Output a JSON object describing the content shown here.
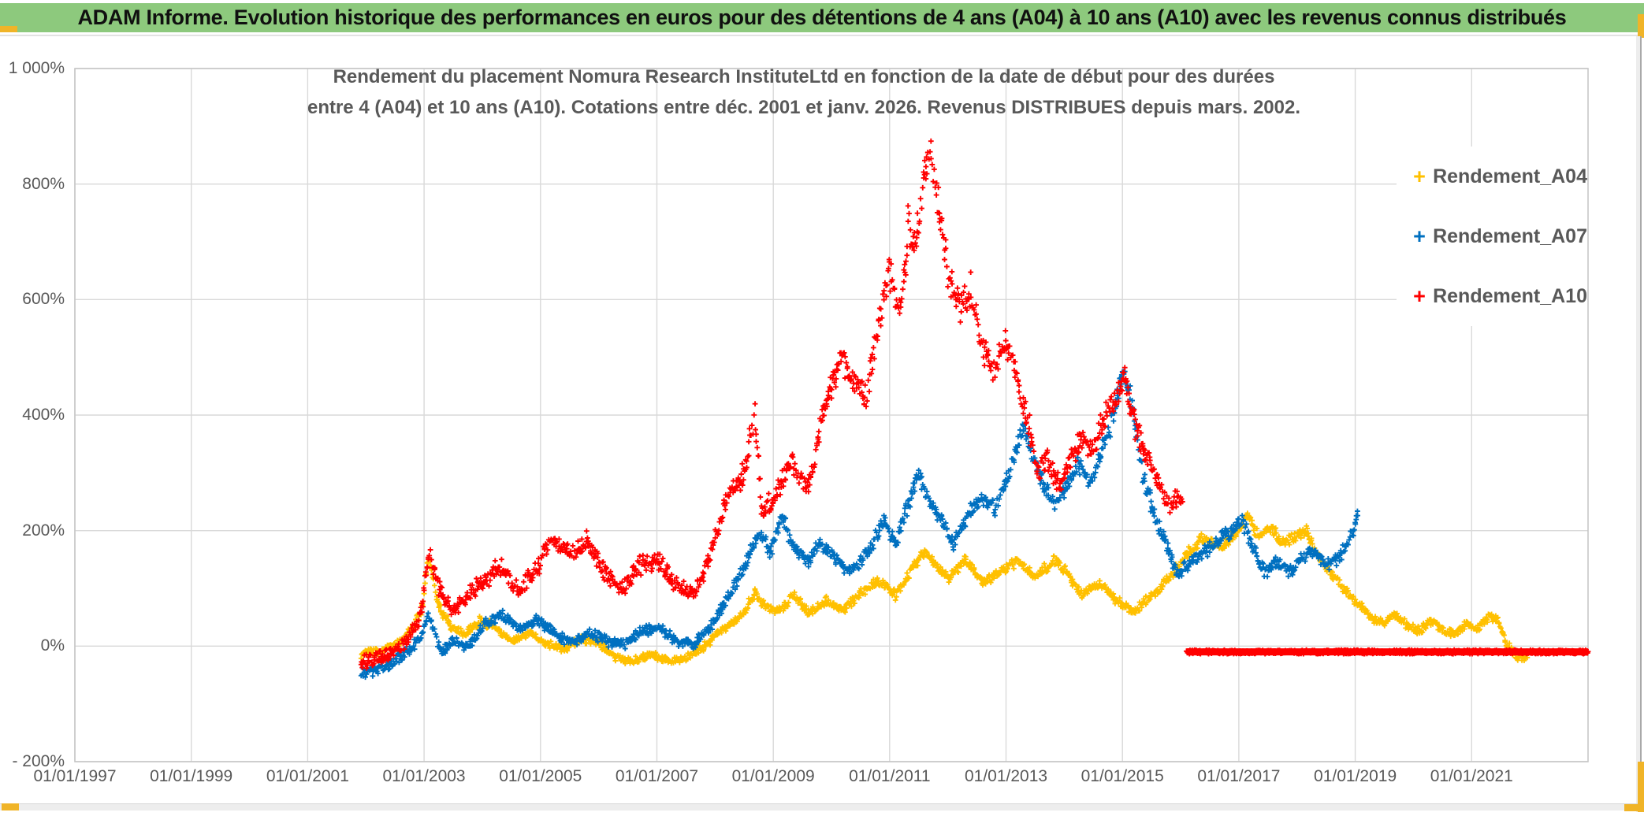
{
  "banner": {
    "text": "ADAM Informe. Evolution historique des performances en euros pour des détentions de 4 ans (A04) à 10 ans (A10) avec les revenus connus distribués",
    "bg_color": "#8dc97d",
    "accent_color": "#f0b428"
  },
  "chart_data": {
    "type": "scatter",
    "title_line1": "Rendement du placement Nomura Research InstituteLtd en fonction de la date de début pour des durées",
    "title_line2": "entre 4 (A04) et 10 ans (A10). Cotations entre déc. 2001 et janv. 2026. Revenus DISTRIBUES depuis mars. 2002.",
    "grid": true,
    "legend_position": "right-inside",
    "grid_color": "#d9d9d9",
    "border_color": "#c6c6c6",
    "x_axis": {
      "labels": [
        "01/01/1997",
        "01/01/1999",
        "01/01/2001",
        "01/01/2003",
        "01/01/2005",
        "01/01/2007",
        "01/01/2009",
        "01/01/2011",
        "01/01/2013",
        "01/01/2015",
        "01/01/2017",
        "01/01/2019",
        "01/01/2021"
      ],
      "start_year": 1997,
      "end_year": 2023,
      "tick_step_years": 2
    },
    "y_axis": {
      "labels": [
        "1 000%",
        "800%",
        "600%",
        "400%",
        "200%",
        "0%",
        "- 200%"
      ],
      "min": -200,
      "max": 1000,
      "grid_step": 200,
      "unit": "%"
    },
    "series": [
      {
        "name": "Rendement_A04",
        "color": "#FFC000",
        "marker": "plus",
        "jitter": 8,
        "anchors": [
          [
            2001.92,
            -15
          ],
          [
            2002.2,
            -8
          ],
          [
            2002.5,
            0
          ],
          [
            2002.75,
            25
          ],
          [
            2002.95,
            60
          ],
          [
            2003.08,
            155
          ],
          [
            2003.25,
            70
          ],
          [
            2003.45,
            35
          ],
          [
            2003.7,
            20
          ],
          [
            2003.95,
            45
          ],
          [
            2004.2,
            35
          ],
          [
            2004.5,
            8
          ],
          [
            2004.8,
            22
          ],
          [
            2005.1,
            4
          ],
          [
            2005.4,
            -6
          ],
          [
            2005.7,
            12
          ],
          [
            2006.0,
            6
          ],
          [
            2006.3,
            -20
          ],
          [
            2006.6,
            -26
          ],
          [
            2006.9,
            -14
          ],
          [
            2007.2,
            -26
          ],
          [
            2007.5,
            -20
          ],
          [
            2007.8,
            -2
          ],
          [
            2008.1,
            28
          ],
          [
            2008.4,
            48
          ],
          [
            2008.7,
            92
          ],
          [
            2008.9,
            65
          ],
          [
            2009.1,
            60
          ],
          [
            2009.35,
            88
          ],
          [
            2009.6,
            58
          ],
          [
            2009.9,
            78
          ],
          [
            2010.2,
            62
          ],
          [
            2010.5,
            92
          ],
          [
            2010.8,
            112
          ],
          [
            2011.1,
            88
          ],
          [
            2011.35,
            128
          ],
          [
            2011.6,
            165
          ],
          [
            2011.8,
            138
          ],
          [
            2012.0,
            118
          ],
          [
            2012.3,
            150
          ],
          [
            2012.6,
            108
          ],
          [
            2012.9,
            128
          ],
          [
            2013.2,
            148
          ],
          [
            2013.5,
            118
          ],
          [
            2013.8,
            148
          ],
          [
            2014.05,
            128
          ],
          [
            2014.3,
            88
          ],
          [
            2014.6,
            108
          ],
          [
            2014.9,
            78
          ],
          [
            2015.2,
            58
          ],
          [
            2015.5,
            88
          ],
          [
            2015.8,
            118
          ],
          [
            2016.1,
            158
          ],
          [
            2016.4,
            188
          ],
          [
            2016.7,
            168
          ],
          [
            2016.95,
            198
          ],
          [
            2017.15,
            228
          ],
          [
            2017.35,
            188
          ],
          [
            2017.55,
            208
          ],
          [
            2017.75,
            178
          ],
          [
            2017.95,
            188
          ],
          [
            2018.15,
            198
          ],
          [
            2018.4,
            148
          ],
          [
            2018.65,
            118
          ],
          [
            2018.9,
            88
          ],
          [
            2019.1,
            68
          ],
          [
            2019.3,
            48
          ],
          [
            2019.5,
            40
          ],
          [
            2019.7,
            55
          ],
          [
            2019.9,
            35
          ],
          [
            2020.1,
            25
          ],
          [
            2020.3,
            45
          ],
          [
            2020.5,
            28
          ],
          [
            2020.7,
            20
          ],
          [
            2020.9,
            38
          ],
          [
            2021.1,
            30
          ],
          [
            2021.3,
            52
          ],
          [
            2021.45,
            45
          ],
          [
            2021.6,
            5
          ],
          [
            2021.75,
            -18
          ],
          [
            2021.9,
            -22
          ],
          [
            2022.0,
            -8
          ]
        ]
      },
      {
        "name": "Rendement_A07",
        "color": "#0070C0",
        "marker": "plus",
        "jitter": 10,
        "anchors": [
          [
            2001.92,
            -48
          ],
          [
            2002.15,
            -42
          ],
          [
            2002.4,
            -32
          ],
          [
            2002.7,
            -12
          ],
          [
            2002.95,
            15
          ],
          [
            2003.08,
            58
          ],
          [
            2003.3,
            -12
          ],
          [
            2003.5,
            8
          ],
          [
            2003.75,
            -2
          ],
          [
            2004.05,
            38
          ],
          [
            2004.35,
            55
          ],
          [
            2004.65,
            28
          ],
          [
            2004.95,
            45
          ],
          [
            2005.25,
            22
          ],
          [
            2005.55,
            5
          ],
          [
            2005.85,
            25
          ],
          [
            2006.15,
            8
          ],
          [
            2006.45,
            4
          ],
          [
            2006.75,
            28
          ],
          [
            2007.05,
            30
          ],
          [
            2007.35,
            8
          ],
          [
            2007.65,
            4
          ],
          [
            2007.95,
            38
          ],
          [
            2008.25,
            88
          ],
          [
            2008.55,
            148
          ],
          [
            2008.75,
            195
          ],
          [
            2008.95,
            165
          ],
          [
            2009.15,
            225
          ],
          [
            2009.35,
            170
          ],
          [
            2009.6,
            148
          ],
          [
            2009.8,
            178
          ],
          [
            2010.05,
            158
          ],
          [
            2010.3,
            128
          ],
          [
            2010.6,
            158
          ],
          [
            2010.9,
            218
          ],
          [
            2011.1,
            178
          ],
          [
            2011.3,
            238
          ],
          [
            2011.5,
            300
          ],
          [
            2011.7,
            248
          ],
          [
            2011.9,
            215
          ],
          [
            2012.1,
            178
          ],
          [
            2012.35,
            228
          ],
          [
            2012.6,
            258
          ],
          [
            2012.8,
            238
          ],
          [
            2013.0,
            288
          ],
          [
            2013.2,
            345
          ],
          [
            2013.3,
            385
          ],
          [
            2013.45,
            325
          ],
          [
            2013.65,
            278
          ],
          [
            2013.85,
            238
          ],
          [
            2014.05,
            278
          ],
          [
            2014.25,
            318
          ],
          [
            2014.45,
            278
          ],
          [
            2014.65,
            338
          ],
          [
            2014.85,
            398
          ],
          [
            2015.0,
            478
          ],
          [
            2015.15,
            428
          ],
          [
            2015.35,
            298
          ],
          [
            2015.55,
            228
          ],
          [
            2015.75,
            178
          ],
          [
            2015.95,
            122
          ],
          [
            2016.15,
            142
          ],
          [
            2016.35,
            158
          ],
          [
            2016.6,
            178
          ],
          [
            2016.85,
            198
          ],
          [
            2017.05,
            218
          ],
          [
            2017.25,
            168
          ],
          [
            2017.45,
            128
          ],
          [
            2017.65,
            148
          ],
          [
            2017.85,
            128
          ],
          [
            2018.05,
            148
          ],
          [
            2018.25,
            168
          ],
          [
            2018.5,
            138
          ],
          [
            2018.75,
            158
          ],
          [
            2018.95,
            195
          ],
          [
            2019.05,
            235
          ]
        ]
      },
      {
        "name": "Rendement_A10",
        "color": "#FF0000",
        "marker": "plus",
        "jitter": 14,
        "anchors": [
          [
            2001.92,
            -28
          ],
          [
            2002.15,
            -22
          ],
          [
            2002.4,
            -12
          ],
          [
            2002.7,
            8
          ],
          [
            2002.95,
            55
          ],
          [
            2003.08,
            162
          ],
          [
            2003.3,
            88
          ],
          [
            2003.5,
            58
          ],
          [
            2003.75,
            88
          ],
          [
            2004.0,
            108
          ],
          [
            2004.3,
            138
          ],
          [
            2004.6,
            98
          ],
          [
            2004.9,
            128
          ],
          [
            2005.2,
            188
          ],
          [
            2005.5,
            158
          ],
          [
            2005.8,
            182
          ],
          [
            2006.1,
            128
          ],
          [
            2006.4,
            98
          ],
          [
            2006.7,
            138
          ],
          [
            2007.0,
            148
          ],
          [
            2007.3,
            108
          ],
          [
            2007.6,
            88
          ],
          [
            2007.9,
            148
          ],
          [
            2008.2,
            258
          ],
          [
            2008.5,
            298
          ],
          [
            2008.68,
            405
          ],
          [
            2008.8,
            238
          ],
          [
            2009.0,
            252
          ],
          [
            2009.3,
            318
          ],
          [
            2009.6,
            278
          ],
          [
            2009.9,
            418
          ],
          [
            2010.15,
            498
          ],
          [
            2010.4,
            458
          ],
          [
            2010.6,
            428
          ],
          [
            2010.8,
            558
          ],
          [
            2011.0,
            648
          ],
          [
            2011.15,
            578
          ],
          [
            2011.3,
            678
          ],
          [
            2011.32,
            775
          ],
          [
            2011.36,
            690
          ],
          [
            2011.45,
            708
          ],
          [
            2011.6,
            820
          ],
          [
            2011.7,
            858
          ],
          [
            2011.85,
            758
          ],
          [
            2012.0,
            648
          ],
          [
            2012.2,
            578
          ],
          [
            2012.4,
            618
          ],
          [
            2012.6,
            518
          ],
          [
            2012.8,
            478
          ],
          [
            2013.0,
            528
          ],
          [
            2013.2,
            458
          ],
          [
            2013.4,
            378
          ],
          [
            2013.55,
            298
          ],
          [
            2013.7,
            328
          ],
          [
            2013.9,
            278
          ],
          [
            2014.1,
            318
          ],
          [
            2014.3,
            358
          ],
          [
            2014.5,
            338
          ],
          [
            2014.7,
            398
          ],
          [
            2014.9,
            438
          ],
          [
            2015.05,
            468
          ],
          [
            2015.2,
            388
          ],
          [
            2015.4,
            328
          ],
          [
            2015.6,
            288
          ],
          [
            2015.8,
            238
          ],
          [
            2015.95,
            258
          ],
          [
            2016.05,
            228
          ]
        ],
        "flat_segment": {
          "from_year": 2016.1,
          "to_year": 2023.0,
          "value": -10
        }
      }
    ]
  }
}
